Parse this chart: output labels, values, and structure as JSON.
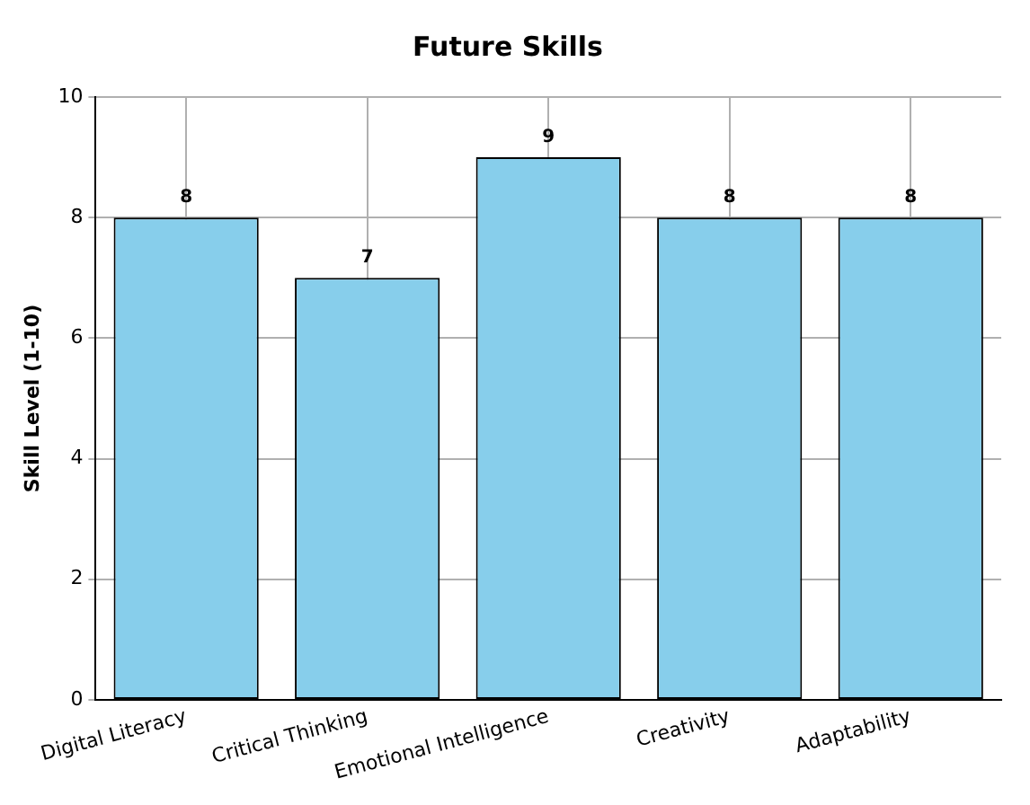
{
  "chart_data": {
    "type": "bar",
    "title": "Future Skills",
    "ylabel": "Skill Level (1-10)",
    "categories": [
      "Digital Literacy",
      "Critical Thinking",
      "Emotional Intelligence",
      "Creativity",
      "Adaptability"
    ],
    "values": [
      8,
      7,
      9,
      8,
      8
    ],
    "color": "#87ceeb",
    "ylim": [
      0,
      10
    ],
    "yticks": [
      0,
      2,
      4,
      6,
      8,
      10
    ],
    "grid": true,
    "data_labels": true,
    "legend": false
  }
}
